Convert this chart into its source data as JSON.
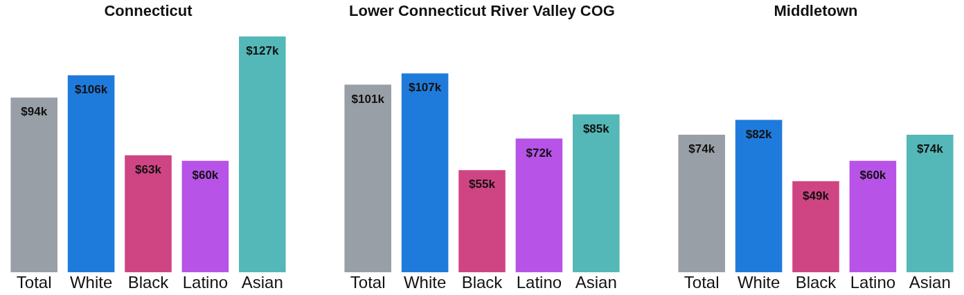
{
  "chart_data": [
    {
      "type": "bar",
      "title": "Connecticut",
      "categories": [
        "Total",
        "White",
        "Black",
        "Latino",
        "Asian"
      ],
      "values": [
        94,
        106,
        63,
        60,
        127
      ],
      "value_labels": [
        "$94k",
        "$106k",
        "$63k",
        "$60k",
        "$127k"
      ],
      "colors": [
        "#989fa7",
        "#1f7bdb",
        "#cf4583",
        "#b853e8",
        "#54b8b8"
      ],
      "grid": false,
      "legend": false,
      "tick_labels": "x"
    },
    {
      "type": "bar",
      "title": "Lower Connecticut River Valley COG",
      "categories": [
        "Total",
        "White",
        "Black",
        "Latino",
        "Asian"
      ],
      "values": [
        101,
        107,
        55,
        72,
        85
      ],
      "value_labels": [
        "$101k",
        "$107k",
        "$55k",
        "$72k",
        "$85k"
      ],
      "colors": [
        "#989fa7",
        "#1f7bdb",
        "#cf4583",
        "#b853e8",
        "#54b8b8"
      ],
      "grid": false,
      "legend": false,
      "tick_labels": "x"
    },
    {
      "type": "bar",
      "title": "Middletown",
      "categories": [
        "Total",
        "White",
        "Black",
        "Latino",
        "Asian"
      ],
      "values": [
        74,
        82,
        49,
        60,
        74
      ],
      "value_labels": [
        "$74k",
        "$82k",
        "$49k",
        "$60k",
        "$74k"
      ],
      "colors": [
        "#989fa7",
        "#1f7bdb",
        "#cf4583",
        "#b853e8",
        "#54b8b8"
      ],
      "grid": false,
      "legend": false,
      "tick_labels": "x"
    }
  ]
}
